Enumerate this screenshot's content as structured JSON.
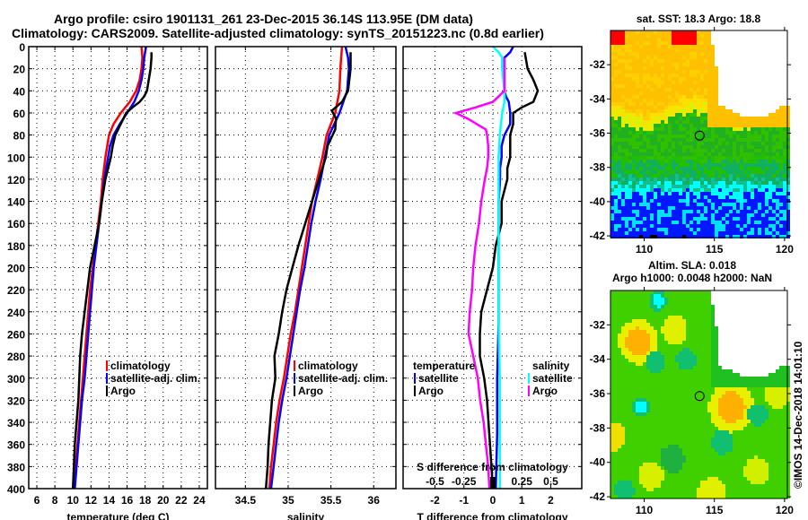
{
  "header": {
    "line1": "Argo profile: csiro 1901131_261 23-Dec-2015 36.14S 113.95E (DM data)",
    "line2": "Climatology: CARS2009. Satellite-adjusted climatology: synTS_20151223.nc (0.8d earlier)"
  },
  "colors": {
    "climatology": "#ff0000",
    "satellite": "#0000ff",
    "argo": "#000000",
    "sal_satellite": "#00ffff",
    "sal_argo": "#ff00ff"
  },
  "chart_data": [
    {
      "type": "line",
      "id": "temperature",
      "xlabel": "temperature (deg C)",
      "ylabel": "depth",
      "xlim": [
        5.1,
        24.9
      ],
      "ylim": [
        0,
        400
      ],
      "xticks": [
        6,
        8,
        10,
        12,
        14,
        16,
        18,
        20,
        22,
        24
      ],
      "yticks": [
        0,
        20,
        40,
        60,
        80,
        100,
        120,
        140,
        160,
        180,
        200,
        220,
        240,
        260,
        280,
        300,
        320,
        340,
        360,
        380,
        400
      ],
      "grid": true,
      "legend": {
        "position": "lower-right",
        "entries": [
          "climatology",
          "satellite-adj. clim.",
          "Argo"
        ]
      },
      "series": [
        {
          "name": "climatology",
          "color": "#ff0000",
          "depth": [
            0,
            10,
            20,
            30,
            40,
            50,
            60,
            70,
            80,
            90,
            100,
            120,
            140,
            160,
            180,
            200,
            220,
            240,
            260,
            280,
            300,
            320,
            340,
            360,
            380,
            400
          ],
          "values": [
            17.6,
            17.7,
            17.6,
            17.4,
            17.0,
            16.3,
            15.3,
            14.5,
            14.0,
            13.8,
            13.6,
            13.3,
            13.1,
            12.8,
            12.5,
            12.2,
            11.9,
            11.7,
            11.5,
            11.3,
            11.1,
            10.9,
            10.7,
            10.5,
            10.3,
            10.1
          ]
        },
        {
          "name": "satellite-adj. clim.",
          "color": "#0000ff",
          "depth": [
            0,
            10,
            20,
            30,
            40,
            50,
            60,
            70,
            80,
            90,
            100,
            120,
            140,
            160,
            180,
            200,
            220,
            240,
            260,
            280,
            300,
            320,
            340,
            360,
            380,
            400
          ],
          "values": [
            18.1,
            17.9,
            17.8,
            17.6,
            17.3,
            16.8,
            16.0,
            15.2,
            14.5,
            14.1,
            13.9,
            13.5,
            13.2,
            12.9,
            12.6,
            12.3,
            12.1,
            11.9,
            11.7,
            11.5,
            11.3,
            11.0,
            10.8,
            10.6,
            10.4,
            10.2
          ]
        },
        {
          "name": "Argo",
          "color": "#000000",
          "depth": [
            5,
            10,
            20,
            30,
            40,
            45,
            50,
            55,
            60,
            70,
            80,
            90,
            100,
            120,
            140,
            160,
            180,
            200,
            220,
            240,
            260,
            280,
            300,
            320,
            340,
            360,
            380,
            400
          ],
          "values": [
            18.7,
            18.7,
            18.6,
            18.4,
            18.2,
            17.9,
            17.4,
            16.6,
            15.9,
            15.3,
            14.7,
            14.4,
            14.2,
            13.6,
            13.2,
            12.9,
            12.4,
            11.9,
            11.6,
            11.3,
            11.0,
            10.8,
            10.7,
            10.6,
            10.4,
            10.2,
            10.1,
            10.0
          ]
        }
      ]
    },
    {
      "type": "line",
      "id": "salinity",
      "xlabel": "salinity",
      "xlim": [
        34.15,
        36.26
      ],
      "ylim": [
        0,
        400
      ],
      "xticks": [
        34.5,
        35,
        35.5,
        36
      ],
      "xticklabels": [
        "34.5",
        "35",
        "35.5",
        "36"
      ],
      "grid": true,
      "legend": {
        "position": "lower-right",
        "entries": [
          "climatology",
          "satellite-adj. clim.",
          "Argo"
        ]
      },
      "series": [
        {
          "name": "climatology",
          "color": "#ff0000",
          "depth": [
            0,
            20,
            40,
            60,
            80,
            100,
            120,
            140,
            160,
            180,
            200,
            220,
            240,
            260,
            280,
            300,
            320,
            340,
            360,
            380,
            400
          ],
          "values": [
            35.63,
            35.61,
            35.6,
            35.55,
            35.45,
            35.4,
            35.34,
            35.28,
            35.24,
            35.2,
            35.16,
            35.12,
            35.08,
            35.03,
            34.99,
            34.95,
            34.9,
            34.86,
            34.83,
            34.8,
            34.78
          ]
        },
        {
          "name": "satellite-adj. clim.",
          "color": "#0000ff",
          "depth": [
            0,
            10,
            20,
            40,
            60,
            80,
            100,
            120,
            140,
            160,
            180,
            200,
            220,
            240,
            260,
            280,
            300,
            320,
            340,
            360,
            380,
            400
          ],
          "values": [
            35.67,
            35.7,
            35.71,
            35.69,
            35.6,
            35.48,
            35.43,
            35.38,
            35.32,
            35.27,
            35.23,
            35.19,
            35.14,
            35.1,
            35.06,
            35.02,
            34.98,
            34.93,
            34.89,
            34.86,
            34.83,
            34.8
          ]
        },
        {
          "name": "Argo",
          "color": "#000000",
          "depth": [
            5,
            20,
            40,
            50,
            58,
            65,
            75,
            80,
            90,
            100,
            120,
            140,
            160,
            180,
            200,
            220,
            240,
            260,
            280,
            300,
            320,
            340,
            360,
            380,
            400
          ],
          "values": [
            35.73,
            35.73,
            35.7,
            35.63,
            35.51,
            35.56,
            35.55,
            35.52,
            35.46,
            35.44,
            35.36,
            35.28,
            35.2,
            35.12,
            35.05,
            34.98,
            34.93,
            34.89,
            34.84,
            34.85,
            34.81,
            34.79,
            34.77,
            34.76,
            34.74
          ]
        }
      ]
    },
    {
      "type": "line",
      "id": "difference",
      "xlabel": "T difference from climatology",
      "xlabel2": "S difference from climatology",
      "xlim": [
        -3.1,
        3.07
      ],
      "ylim": [
        0,
        400
      ],
      "xticks": [
        -2,
        -1,
        0,
        1,
        2
      ],
      "xticks_s": [
        -0.5,
        -0.25,
        0,
        0.25,
        0.5
      ],
      "xticklabels_s": [
        "-0.5",
        "-0.25",
        "0",
        "0.25",
        "0.5"
      ],
      "grid": true,
      "legend": {
        "position": "lower",
        "temperature_title": "temperature",
        "salinity_title": "salinity",
        "entries": [
          "satellite",
          "Argo",
          "satellite",
          "Argo"
        ]
      },
      "series": [
        {
          "name": "temperature satellite",
          "color": "#0000ff",
          "depth": [
            0,
            5,
            10,
            20,
            40,
            45,
            50,
            60,
            70,
            80,
            90,
            100,
            110,
            120,
            140,
            160,
            180,
            200,
            250,
            300,
            350,
            400
          ],
          "values": [
            0.7,
            0.6,
            0.4,
            0.4,
            0.4,
            0.45,
            0.55,
            0.6,
            0.6,
            0.4,
            0.3,
            0.3,
            0.25,
            0.25,
            0.2,
            0.2,
            0.2,
            0.2,
            0.2,
            0.15,
            0.15,
            0.1
          ]
        },
        {
          "name": "temperature Argo",
          "color": "#000000",
          "depth": [
            5,
            20,
            30,
            40,
            50,
            55,
            60,
            65,
            70,
            80,
            90,
            100,
            110,
            120,
            130,
            140,
            160,
            180,
            200,
            220,
            240,
            260,
            280,
            300,
            320,
            340,
            360,
            380,
            400
          ],
          "values": [
            1.1,
            1.2,
            1.4,
            1.55,
            1.4,
            1.0,
            0.7,
            0.7,
            0.7,
            0.6,
            0.6,
            0.6,
            0.5,
            0.5,
            0.4,
            0.3,
            0.3,
            0.1,
            0.0,
            -0.2,
            -0.4,
            -0.45,
            -0.45,
            -0.3,
            -0.2,
            -0.15,
            -0.1,
            -0.05,
            0.0
          ]
        },
        {
          "name": "salinity satellite",
          "color": "#00ffff",
          "depth": [
            0,
            5,
            10,
            20,
            40,
            50,
            60,
            80,
            100,
            120,
            140,
            160,
            180,
            200,
            250,
            300,
            350,
            400
          ],
          "values": [
            0.0,
            0.05,
            0.08,
            0.08,
            0.1,
            0.1,
            0.08,
            0.06,
            0.05,
            0.05,
            0.05,
            0.05,
            0.05,
            0.05,
            0.05,
            0.06,
            0.06,
            0.06
          ]
        },
        {
          "name": "salinity Argo",
          "color": "#ff00ff",
          "depth": [
            10,
            40,
            50,
            55,
            60,
            65,
            75,
            80,
            90,
            100,
            110,
            120,
            140,
            160,
            180,
            200,
            220,
            240,
            260,
            280,
            300,
            320,
            340,
            360,
            380,
            400
          ],
          "values": [
            0.1,
            0.1,
            0.0,
            -0.15,
            -0.32,
            -0.22,
            -0.06,
            -0.05,
            -0.04,
            -0.04,
            -0.05,
            -0.07,
            -0.1,
            -0.12,
            -0.15,
            -0.17,
            -0.18,
            -0.2,
            -0.21,
            -0.17,
            -0.13,
            -0.11,
            -0.08,
            -0.06,
            -0.04,
            -0.03
          ]
        }
      ]
    },
    {
      "type": "heatmap",
      "id": "sst-map",
      "title": "sat. SST: 18.3 Argo: 18.8",
      "xlim": [
        107.6,
        120.2
      ],
      "ylim": [
        -42.1,
        -30.0
      ],
      "xticks": [
        110,
        115,
        120
      ],
      "yticks": [
        -32,
        -34,
        -36,
        -38,
        -40,
        -42
      ],
      "marker": {
        "lon": 113.95,
        "lat": -36.14
      }
    },
    {
      "type": "heatmap",
      "id": "sla-map",
      "title": "Altim. SLA: 0.018",
      "subtitle": "Argo h1000: 0.0048 h2000: NaN",
      "xlim": [
        107.6,
        120.2
      ],
      "ylim": [
        -42.1,
        -30.0
      ],
      "xticks": [
        110,
        115,
        120
      ],
      "yticks": [
        -32,
        -34,
        -36,
        -38,
        -40,
        -42
      ],
      "marker": {
        "lon": 113.95,
        "lat": -36.14
      }
    }
  ],
  "footer": {
    "copyright": "©IMOS 14-Dec-2018 14:01:10"
  }
}
